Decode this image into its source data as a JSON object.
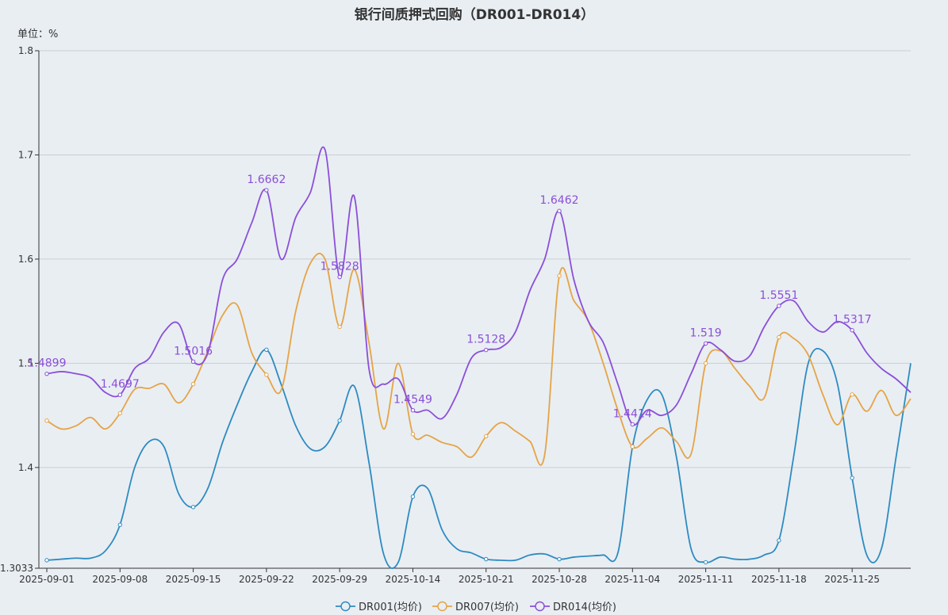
{
  "chart_data": {
    "type": "line",
    "title": "银行间质押式回购（DR001-DR014）",
    "unit_label": "单位：%",
    "ylim": [
      1.3033,
      1.8
    ],
    "yticks": [
      "1.3033",
      "1.4",
      "1.5",
      "1.6",
      "1.7",
      "1.8"
    ],
    "x_tick_labels": [
      "2025-09-01",
      "2025-09-08",
      "2025-09-15",
      "2025-09-22",
      "2025-09-29",
      "2025-10-14",
      "2025-10-21",
      "2025-10-28",
      "2025-11-04",
      "2025-11-11",
      "2025-11-18",
      "2025-11-25"
    ],
    "x_tick_index": [
      0,
      5,
      10,
      15,
      20,
      25,
      30,
      35,
      40,
      45,
      50,
      55
    ],
    "point_count": 60,
    "legend_position": "bottom-center",
    "series": [
      {
        "name": "DR001(均价)",
        "color": "#2e8bc0",
        "values": [
          1.311,
          1.312,
          1.313,
          1.313,
          1.32,
          1.345,
          1.4,
          1.425,
          1.42,
          1.375,
          1.362,
          1.38,
          1.424,
          1.46,
          1.492,
          1.513,
          1.48,
          1.44,
          1.418,
          1.42,
          1.445,
          1.478,
          1.405,
          1.317,
          1.309,
          1.372,
          1.38,
          1.34,
          1.322,
          1.318,
          1.312,
          1.311,
          1.311,
          1.316,
          1.317,
          1.312,
          1.314,
          1.315,
          1.316,
          1.318,
          1.42,
          1.465,
          1.47,
          1.41,
          1.322,
          1.309,
          1.314,
          1.312,
          1.312,
          1.316,
          1.33,
          1.41,
          1.5,
          1.512,
          1.48,
          1.39,
          1.316,
          1.322,
          1.41,
          1.5
        ],
        "labels": []
      },
      {
        "name": "DR007(均价)",
        "color": "#e5a445",
        "values": [
          1.445,
          1.437,
          1.44,
          1.448,
          1.437,
          1.452,
          1.475,
          1.476,
          1.48,
          1.462,
          1.48,
          1.512,
          1.546,
          1.556,
          1.51,
          1.489,
          1.474,
          1.55,
          1.596,
          1.6,
          1.535,
          1.59,
          1.52,
          1.437,
          1.5,
          1.432,
          1.431,
          1.424,
          1.42,
          1.41,
          1.43,
          1.443,
          1.435,
          1.425,
          1.412,
          1.584,
          1.56,
          1.54,
          1.5,
          1.455,
          1.42,
          1.428,
          1.438,
          1.425,
          1.413,
          1.5,
          1.512,
          1.495,
          1.478,
          1.467,
          1.525,
          1.524,
          1.508,
          1.47,
          1.441,
          1.47,
          1.454,
          1.474,
          1.45,
          1.466
        ],
        "labels": []
      },
      {
        "name": "DR014(均价)",
        "color": "#8b4fd8",
        "values": [
          1.4899,
          1.492,
          1.49,
          1.486,
          1.472,
          1.4697,
          1.495,
          1.505,
          1.53,
          1.538,
          1.5016,
          1.51,
          1.58,
          1.6,
          1.635,
          1.6662,
          1.6,
          1.64,
          1.664,
          1.705,
          1.5828,
          1.66,
          1.495,
          1.48,
          1.485,
          1.4549,
          1.455,
          1.447,
          1.47,
          1.505,
          1.5128,
          1.515,
          1.53,
          1.57,
          1.6,
          1.6462,
          1.58,
          1.54,
          1.52,
          1.48,
          1.4414,
          1.455,
          1.45,
          1.46,
          1.49,
          1.519,
          1.513,
          1.502,
          1.507,
          1.535,
          1.5551,
          1.56,
          1.54,
          1.53,
          1.54,
          1.5317,
          1.51,
          1.495,
          1.485,
          1.472
        ],
        "labels": [
          {
            "i": 0,
            "text": "1.4899"
          },
          {
            "i": 5,
            "text": "1.4697"
          },
          {
            "i": 10,
            "text": "1.5016"
          },
          {
            "i": 15,
            "text": "1.6662"
          },
          {
            "i": 20,
            "text": "1.5828"
          },
          {
            "i": 25,
            "text": "1.4549"
          },
          {
            "i": 30,
            "text": "1.5128"
          },
          {
            "i": 35,
            "text": "1.6462"
          },
          {
            "i": 40,
            "text": "1.4414"
          },
          {
            "i": 45,
            "text": "1.519"
          },
          {
            "i": 50,
            "text": "1.5551"
          },
          {
            "i": 55,
            "text": "1.5317"
          }
        ]
      }
    ]
  }
}
